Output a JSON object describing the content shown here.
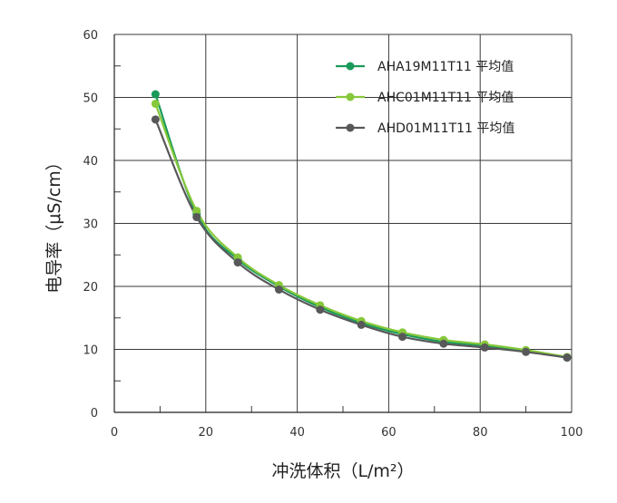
{
  "chart_data": {
    "type": "line",
    "xlabel": "冲洗体积（L/m²）",
    "ylabel": "电导率（μS/cm）",
    "xlim": [
      0,
      100
    ],
    "ylim": [
      0,
      60
    ],
    "xticks": [
      "0",
      "20",
      "40",
      "60",
      "80",
      "100"
    ],
    "yticks": [
      "0",
      "10",
      "20",
      "30",
      "40",
      "50",
      "60"
    ],
    "grid": true,
    "legend_position": "top-right",
    "series": [
      {
        "name": "AHA19M11T11 平均值",
        "color": "#1a9a5a",
        "x": [
          9,
          18,
          27,
          36,
          45,
          54,
          63,
          72,
          81,
          90,
          99
        ],
        "y": [
          50.5,
          31.5,
          24.3,
          20.0,
          16.7,
          14.2,
          12.4,
          11.2,
          10.6,
          9.8,
          8.7
        ]
      },
      {
        "name": "AHC01M11T11 平均值",
        "color": "#86c83a",
        "x": [
          9,
          18,
          27,
          36,
          45,
          54,
          63,
          72,
          81,
          90,
          99
        ],
        "y": [
          49.0,
          32.0,
          24.6,
          20.2,
          17.0,
          14.5,
          12.7,
          11.5,
          10.8,
          9.9,
          8.8
        ]
      },
      {
        "name": "AHD01M11T11 平均值",
        "color": "#58585a",
        "x": [
          9,
          18,
          27,
          36,
          45,
          54,
          63,
          72,
          81,
          90,
          99
        ],
        "y": [
          46.5,
          31.0,
          23.8,
          19.5,
          16.3,
          13.9,
          12.0,
          10.9,
          10.3,
          9.6,
          8.7
        ]
      }
    ]
  }
}
